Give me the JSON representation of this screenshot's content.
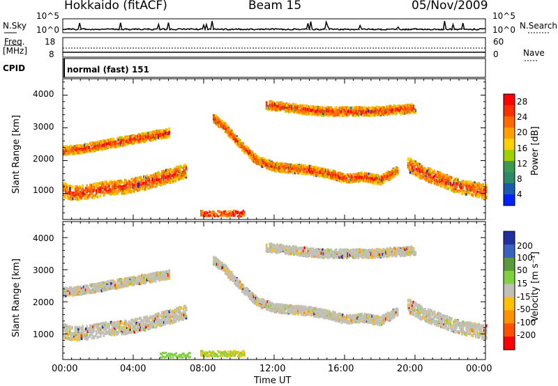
{
  "header": {
    "station": "Hokkaido (fitACF)",
    "beam": "Beam 15",
    "date": "05/Nov/2009"
  },
  "top_panels": {
    "nsky_label": "N.Sky",
    "nsearch_label": "N.Search",
    "noise_ticks": [
      "10^5",
      "10^0"
    ],
    "freq_label": "Freq.",
    "freq_unit": "[MHz]",
    "freq_ticks": [
      "18",
      "8"
    ],
    "nave_label": "Nave",
    "nave_ticks": [
      "60",
      "0"
    ],
    "cpid_label": "CPID",
    "cpid_value": "normal (fast) 151"
  },
  "chart_data": [
    {
      "type": "heatmap",
      "title": "Power",
      "ylabel": "Slant Range [km]",
      "xlabel": "Time UT",
      "x_ticks": [
        "00:00",
        "04:00",
        "08:00",
        "12:00",
        "16:00",
        "20:00",
        "00:00"
      ],
      "x_range_hours": [
        0,
        24
      ],
      "y_ticks": [
        1000,
        2000,
        3000,
        4000
      ],
      "ylim": [
        200,
        4500
      ],
      "colorbar": {
        "label": "Power [dB]",
        "ticks": [
          "28",
          "24",
          "20",
          "16",
          "12",
          "8",
          "4"
        ],
        "colors": [
          "#ff0000",
          "#ff3000",
          "#ff6a00",
          "#ffa000",
          "#ffd000",
          "#a0d000",
          "#3a9a50",
          "#2c8a6a",
          "#1a5ab0",
          "#0020ff"
        ]
      },
      "echo_bands": [
        {
          "t": [
            0,
            0.5,
            1.5,
            2.5,
            3.5,
            4.5,
            5.5,
            6.5,
            7.0
          ],
          "r": [
            1100,
            1000,
            1050,
            1150,
            1200,
            1300,
            1450,
            1600,
            1700
          ]
        },
        {
          "t": [
            0,
            1.0,
            2.0,
            3.0,
            4.0,
            5.0,
            6.0
          ],
          "r": [
            2300,
            2350,
            2450,
            2550,
            2650,
            2750,
            2850
          ]
        },
        {
          "t": [
            8.5,
            9.2,
            10.0,
            11.0,
            12.0,
            13.0,
            14.0,
            15.0,
            16.0,
            17.0,
            18.0,
            19.0
          ],
          "r": [
            3300,
            3000,
            2500,
            2000,
            1800,
            1750,
            1700,
            1600,
            1450,
            1500,
            1400,
            1700
          ]
        },
        {
          "t": [
            11.5,
            13.0,
            14.5,
            16.0,
            17.5,
            19.0,
            20.0
          ],
          "r": [
            3700,
            3600,
            3500,
            3500,
            3500,
            3550,
            3600
          ]
        },
        {
          "t": [
            19.5,
            20.5,
            21.5,
            22.5,
            23.5,
            24.0
          ],
          "r": [
            1900,
            1600,
            1400,
            1200,
            1100,
            1050
          ]
        }
      ]
    },
    {
      "type": "heatmap",
      "title": "Velocity",
      "ylabel": "Slant Range [km]",
      "xlabel": "Time UT",
      "x_ticks": [
        "00:00",
        "04:00",
        "08:00",
        "12:00",
        "16:00",
        "20:00",
        "00:00"
      ],
      "y_ticks": [
        1000,
        2000,
        3000,
        4000
      ],
      "ylim": [
        200,
        4500
      ],
      "colorbar": {
        "label": "Velocity [m s⁻¹]",
        "ticks": [
          "200",
          "100",
          "50",
          "15",
          "-15",
          "-50",
          "-100",
          "-200"
        ],
        "colors": [
          "#2030a0",
          "#3a60c0",
          "#5a9a3a",
          "#80d040",
          "#c0c0b8",
          "#ffc000",
          "#ff9000",
          "#ff5000",
          "#ff0000"
        ]
      }
    }
  ]
}
